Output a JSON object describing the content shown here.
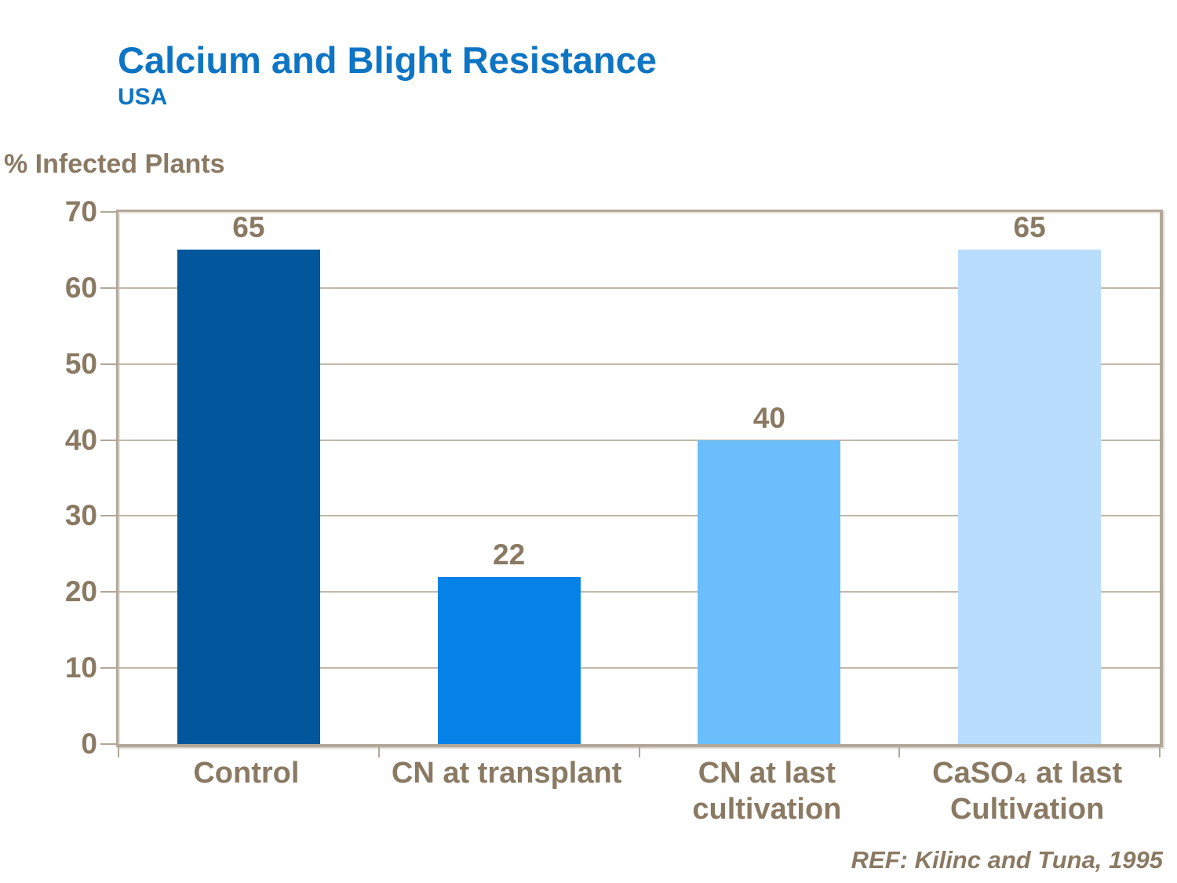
{
  "header": {
    "title": "Calcium and Blight Resistance",
    "subtitle": "USA"
  },
  "chart_data": {
    "type": "bar",
    "title": "Calcium and Blight Resistance",
    "ylabel": "% Infected Plants",
    "xlabel": "",
    "categories": [
      [
        "Control"
      ],
      [
        "CN at transplant"
      ],
      [
        "CN at last",
        "cultivation"
      ],
      [
        "CaSO₄ at last",
        "Cultivation"
      ]
    ],
    "values": [
      65,
      22,
      40,
      65
    ],
    "data_labels": [
      "65",
      "22",
      "40",
      "65"
    ],
    "bar_colors": [
      "#02569B",
      "#0482E8",
      "#6BBEFC",
      "#B9DDFC"
    ],
    "ylim": [
      0,
      70
    ],
    "yticks": [
      0,
      10,
      20,
      30,
      40,
      50,
      60,
      70
    ],
    "grid": true,
    "legend": "none"
  },
  "footer": {
    "reference": "REF: Kilinc and Tuna, 1995"
  },
  "colors": {
    "title_blue": "#0E74C4",
    "axis_text_brown": "#8A7A63",
    "frame_tan": "#B2A799",
    "gridline_tan": "#C2B8A9",
    "background": "#FFFFFF"
  }
}
